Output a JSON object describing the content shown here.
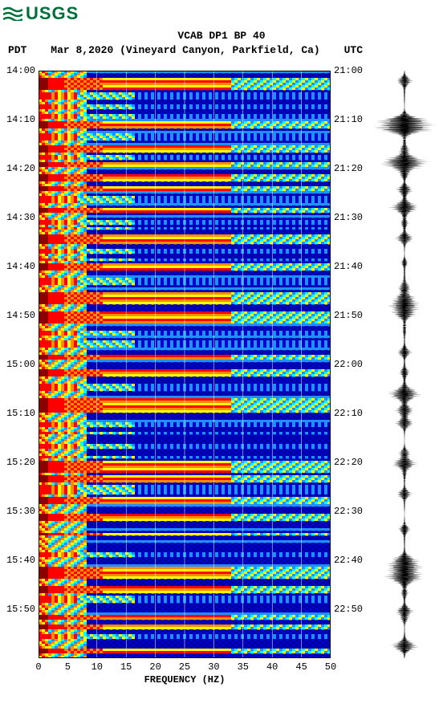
{
  "logo": {
    "text": "USGS",
    "color": "#006e3b"
  },
  "header": {
    "line1": "VCAB DP1 BP 40",
    "tz_left": "PDT",
    "date_loc": "Mar 8,2020 (Vineyard Canyon, Parkfield, Ca)",
    "tz_right": "UTC"
  },
  "chart": {
    "type": "spectrogram",
    "xlabel": "FREQUENCY (HZ)",
    "xlim": [
      0,
      50
    ],
    "xticks": [
      0,
      5,
      10,
      15,
      20,
      25,
      30,
      35,
      40,
      45,
      50
    ],
    "y_left_ticks": [
      "14:00",
      "14:10",
      "14:20",
      "14:30",
      "14:40",
      "14:50",
      "15:00",
      "15:10",
      "15:20",
      "15:30",
      "15:40",
      "15:50"
    ],
    "y_right_ticks": [
      "21:00",
      "21:10",
      "21:20",
      "21:30",
      "21:40",
      "21:50",
      "22:00",
      "22:10",
      "22:20",
      "22:30",
      "22:40",
      "22:50"
    ],
    "y_positions": [
      0,
      8.33,
      16.67,
      25,
      33.33,
      41.67,
      50,
      58.33,
      66.67,
      75,
      83.33,
      91.67
    ],
    "background_color": "#00008b",
    "grid_color": "#ffffff",
    "colormap": [
      "#00008b",
      "#0000cd",
      "#1e90ff",
      "#00ffff",
      "#ffff00",
      "#ff8c00",
      "#ff0000",
      "#8b0000"
    ],
    "rows": 244,
    "freq_bins": 91,
    "high_energy_rows": [
      3,
      4,
      5,
      6,
      7,
      21,
      22,
      23,
      31,
      32,
      33,
      38,
      39,
      43,
      44,
      45,
      48,
      49,
      57,
      58,
      68,
      69,
      70,
      71,
      80,
      81,
      82,
      92,
      93,
      94,
      95,
      96,
      100,
      101,
      102,
      103,
      104,
      118,
      119,
      124,
      125,
      126,
      136,
      137,
      138,
      139,
      140,
      141,
      162,
      163,
      164,
      165,
      166,
      168,
      169,
      170,
      177,
      178,
      179,
      184,
      185,
      186,
      192,
      206,
      207,
      208,
      209,
      210,
      214,
      215,
      216,
      226,
      227,
      230,
      231,
      240,
      241
    ],
    "mid_energy_rows": [
      9,
      10,
      11,
      14,
      15,
      18,
      19,
      26,
      27,
      28,
      35,
      36,
      52,
      53,
      54,
      62,
      63,
      65,
      74,
      75,
      78,
      86,
      87,
      88,
      108,
      109,
      112,
      113,
      114,
      130,
      131,
      132,
      146,
      147,
      150,
      155,
      156,
      160,
      172,
      173,
      174,
      175,
      200,
      201,
      218,
      219,
      220,
      234,
      235
    ],
    "low_freq_intensity_col_limit": 15,
    "seismogram_events": [
      {
        "t": 0.016,
        "a": 0.35
      },
      {
        "t": 0.09,
        "a": 1.0
      },
      {
        "t": 0.095,
        "a": 0.7
      },
      {
        "t": 0.13,
        "a": 0.45
      },
      {
        "t": 0.15,
        "a": 0.35
      },
      {
        "t": 0.16,
        "a": 0.65
      },
      {
        "t": 0.18,
        "a": 0.25
      },
      {
        "t": 0.2,
        "a": 0.45
      },
      {
        "t": 0.235,
        "a": 0.6
      },
      {
        "t": 0.255,
        "a": 0.4
      },
      {
        "t": 0.285,
        "a": 0.3
      },
      {
        "t": 0.325,
        "a": 0.2
      },
      {
        "t": 0.38,
        "a": 0.9
      },
      {
        "t": 0.4,
        "a": 0.45
      },
      {
        "t": 0.415,
        "a": 0.35
      },
      {
        "t": 0.44,
        "a": 0.3
      },
      {
        "t": 0.48,
        "a": 0.25
      },
      {
        "t": 0.51,
        "a": 0.4
      },
      {
        "t": 0.555,
        "a": 0.85
      },
      {
        "t": 0.575,
        "a": 0.55
      },
      {
        "t": 0.6,
        "a": 0.3
      },
      {
        "t": 0.65,
        "a": 0.2
      },
      {
        "t": 0.67,
        "a": 0.45
      },
      {
        "t": 0.69,
        "a": 0.25
      },
      {
        "t": 0.72,
        "a": 0.25
      },
      {
        "t": 0.78,
        "a": 0.2
      },
      {
        "t": 0.83,
        "a": 0.6
      },
      {
        "t": 0.845,
        "a": 0.45
      },
      {
        "t": 0.865,
        "a": 0.8
      },
      {
        "t": 0.885,
        "a": 0.35
      },
      {
        "t": 0.92,
        "a": 0.3
      },
      {
        "t": 0.935,
        "a": 0.25
      },
      {
        "t": 0.98,
        "a": 0.45
      }
    ],
    "seis_color": "#000000",
    "seis_noise_amp": 0.04
  }
}
